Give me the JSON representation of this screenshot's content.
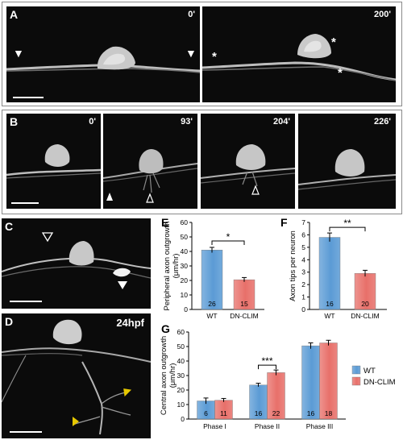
{
  "panel_a": {
    "label": "A",
    "frames": [
      {
        "time": "0'",
        "marks": [
          "▼",
          "▼"
        ]
      },
      {
        "time": "200'",
        "marks": [
          "*",
          "*",
          "*"
        ]
      }
    ]
  },
  "panel_b": {
    "label": "B",
    "frames": [
      {
        "time": "0'"
      },
      {
        "time": "93'"
      },
      {
        "time": "204'"
      },
      {
        "time": "226'"
      }
    ]
  },
  "panel_c": {
    "label": "C"
  },
  "panel_d": {
    "label": "D",
    "stage": "24hpf"
  },
  "colors": {
    "wt": "#5b9bd5",
    "dn_clim": "#e8706a",
    "bracket": "#000000"
  },
  "chart_data": [
    {
      "panel": "E",
      "type": "bar",
      "ylabel": "Peripheral axon outgrowth",
      "yunit": "(μm/hr)",
      "categories": [
        "WT",
        "DN-CLIM"
      ],
      "values": [
        41,
        20.5
      ],
      "errors": [
        1.8,
        1.5
      ],
      "n": [
        "26",
        "15"
      ],
      "ylim": [
        0,
        60
      ],
      "yticks": [
        "0",
        "10",
        "20",
        "30",
        "40",
        "50",
        "60"
      ],
      "significance": "*"
    },
    {
      "panel": "F",
      "type": "bar",
      "ylabel": "Axon tips per neuron",
      "categories": [
        "WT",
        "DN-CLIM"
      ],
      "values": [
        5.8,
        2.9
      ],
      "errors": [
        0.35,
        0.25
      ],
      "n": [
        "16",
        "20"
      ],
      "ylim": [
        0,
        7
      ],
      "yticks": [
        "0",
        "1",
        "2",
        "3",
        "4",
        "5",
        "6",
        "7"
      ],
      "significance": "**"
    },
    {
      "panel": "G",
      "type": "bar",
      "ylabel": "Central axon outgrowth",
      "yunit": "(μm/hr)",
      "categories": [
        "Phase I",
        "Phase II",
        "Phase III"
      ],
      "series": [
        {
          "name": "WT",
          "values": [
            12.5,
            23.5,
            50.5
          ],
          "errors": [
            2,
            1.2,
            2
          ],
          "n": [
            "6",
            "16",
            "16"
          ]
        },
        {
          "name": "DN-CLIM",
          "values": [
            13,
            32,
            52.5
          ],
          "errors": [
            1.2,
            1.8,
            1.8
          ],
          "n": [
            "11",
            "22",
            "18"
          ]
        }
      ],
      "ylim": [
        0,
        60
      ],
      "yticks": [
        "0",
        "10",
        "20",
        "30",
        "40",
        "50",
        "60"
      ],
      "significance": {
        "category": "Phase II",
        "label": "***"
      },
      "legend_position": "right"
    }
  ]
}
